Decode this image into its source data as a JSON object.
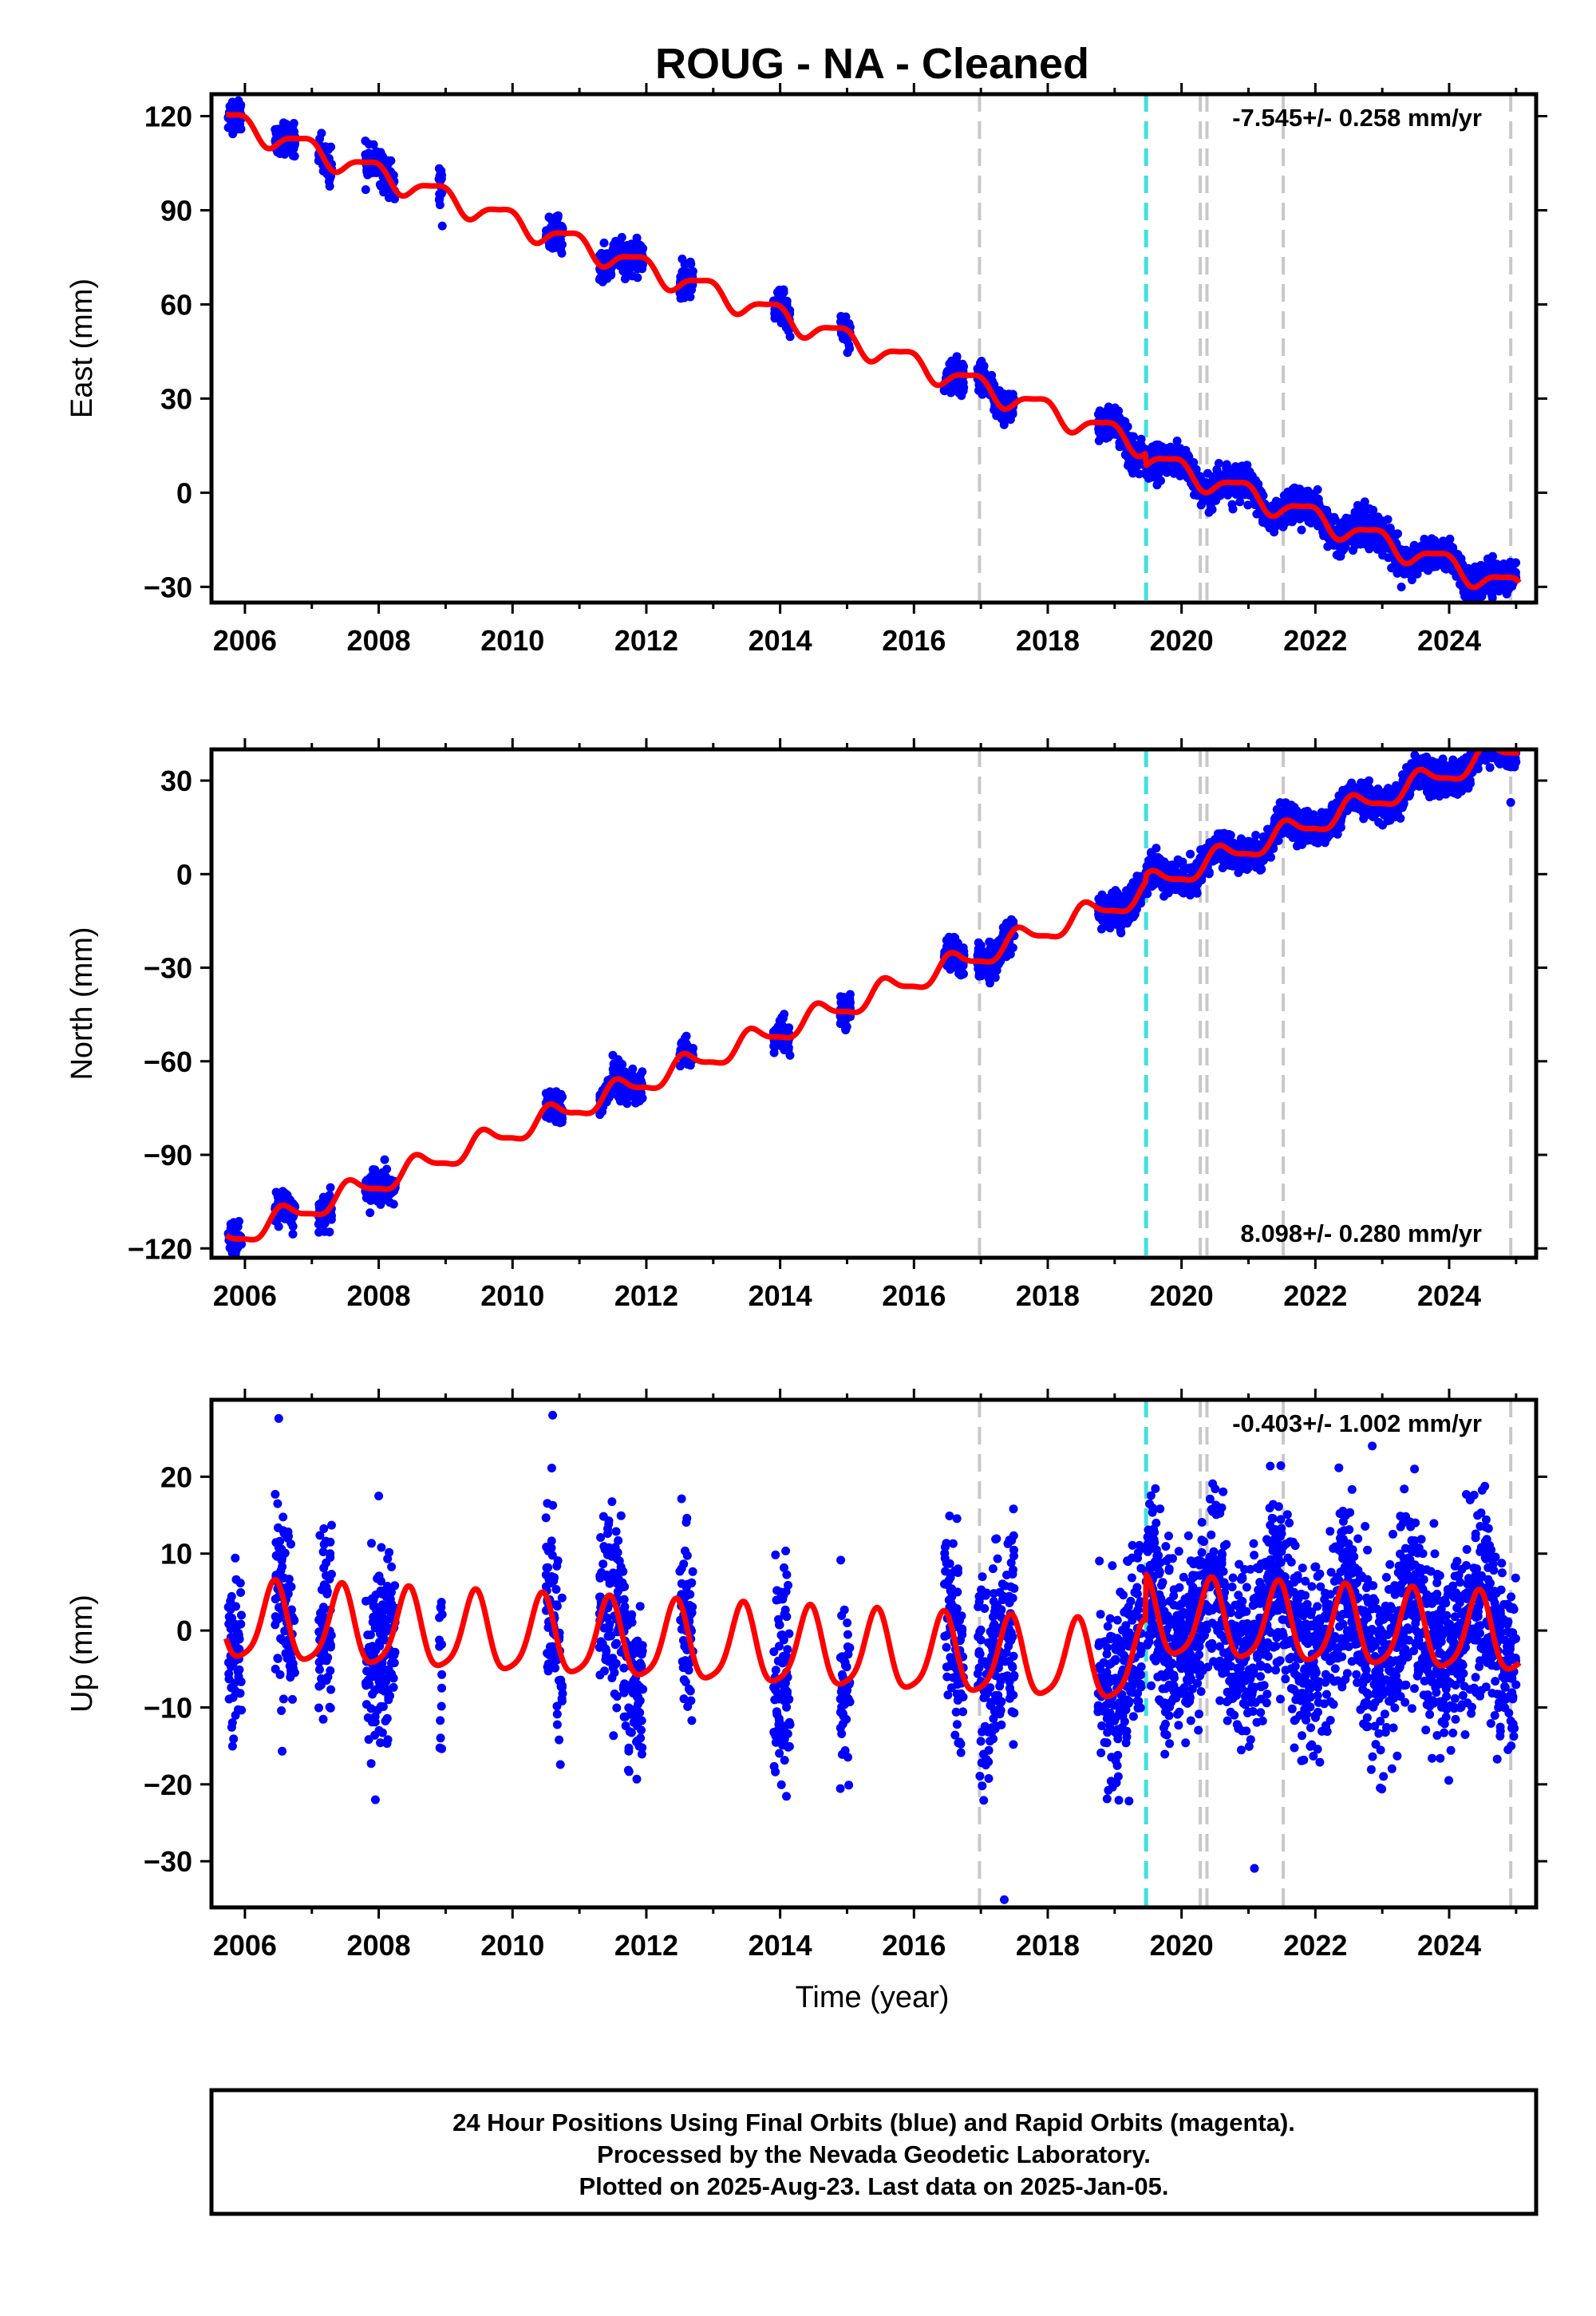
{
  "title": "ROUG  - NA - Cleaned",
  "xlabel": "Time (year)",
  "footer": {
    "line1": "24 Hour Positions Using Final Orbits (blue) and Rapid Orbits (magenta).",
    "line2": "Processed by the Nevada Geodetic Laboratory.",
    "line3": "Plotted on 2025-Aug-23. Last data on 2025-Jan-05."
  },
  "colors": {
    "data": "#0000ff",
    "model": "#ff0000",
    "equipment_change": "#c8c8c8",
    "antenna_change": "#40e0e0",
    "frame": "#000000"
  },
  "chart_data": [
    {
      "type": "scatter",
      "panel": "east",
      "ylabel": "East (mm)",
      "xlim": [
        2005.5,
        2025.3
      ],
      "ylim": [
        -35,
        127
      ],
      "xticks": [
        2006,
        2008,
        2010,
        2012,
        2014,
        2016,
        2018,
        2020,
        2022,
        2024
      ],
      "yticks": [
        -30,
        0,
        30,
        60,
        90,
        120
      ],
      "rate_label": "-7.545+/- 0.258 mm/yr",
      "rate_position": "top-right",
      "grid": false,
      "trend": {
        "slope": -7.545,
        "t0": 2015.5,
        "intercept": 45,
        "amp1": 3.5,
        "phase1": 2.4,
        "amp2": 1.0,
        "phase2": 0.8,
        "offsets": [
          {
            "t": 2019.47,
            "dy": -4
          }
        ]
      },
      "dashed_lines": [
        {
          "x": 2016.98,
          "kind": "equipment"
        },
        {
          "x": 2019.47,
          "kind": "antenna"
        },
        {
          "x": 2020.28,
          "kind": "equipment"
        },
        {
          "x": 2020.38,
          "kind": "equipment"
        },
        {
          "x": 2021.52,
          "kind": "equipment"
        },
        {
          "x": 2024.92,
          "kind": "equipment"
        }
      ],
      "data_segments": [
        [
          2005.75,
          2005.95
        ],
        [
          2006.45,
          2006.75
        ],
        [
          2007.1,
          2007.3
        ],
        [
          2007.8,
          2008.25
        ],
        [
          2008.9,
          2008.95
        ],
        [
          2010.5,
          2010.75
        ],
        [
          2011.3,
          2011.95
        ],
        [
          2012.5,
          2012.7
        ],
        [
          2013.9,
          2014.15
        ],
        [
          2014.9,
          2015.05
        ],
        [
          2016.45,
          2016.75
        ],
        [
          2016.95,
          2017.5
        ],
        [
          2018.75,
          2019.4
        ],
        [
          2019.45,
          2025.0
        ]
      ],
      "data_scatter": 2.5,
      "outliers": [
        {
          "x": 2008.95,
          "y": 85
        }
      ]
    },
    {
      "type": "scatter",
      "panel": "north",
      "ylabel": "North (mm)",
      "xlim": [
        2005.5,
        2025.3
      ],
      "ylim": [
        -123,
        40
      ],
      "xticks": [
        2006,
        2008,
        2010,
        2012,
        2014,
        2016,
        2018,
        2020,
        2022,
        2024
      ],
      "yticks": [
        -120,
        -90,
        -60,
        -30,
        0,
        30
      ],
      "rate_label": "8.098+/- 0.280 mm/yr",
      "rate_position": "bottom-right",
      "grid": false,
      "trend": {
        "slope": 8.098,
        "t0": 2015.5,
        "intercept": -38,
        "amp1": 3.5,
        "phase1": 4.2,
        "amp2": 1.0,
        "phase2": 1.5,
        "offsets": [
          {
            "t": 2019.47,
            "dy": 2
          }
        ]
      },
      "dashed_lines": [
        {
          "x": 2016.98,
          "kind": "equipment"
        },
        {
          "x": 2019.47,
          "kind": "antenna"
        },
        {
          "x": 2020.28,
          "kind": "equipment"
        },
        {
          "x": 2020.38,
          "kind": "equipment"
        },
        {
          "x": 2021.52,
          "kind": "equipment"
        },
        {
          "x": 2024.92,
          "kind": "equipment"
        }
      ],
      "data_segments": [
        [
          2005.75,
          2005.95
        ],
        [
          2006.45,
          2006.75
        ],
        [
          2007.1,
          2007.3
        ],
        [
          2007.8,
          2008.25
        ],
        [
          2010.5,
          2010.75
        ],
        [
          2011.3,
          2011.95
        ],
        [
          2012.5,
          2012.7
        ],
        [
          2013.9,
          2014.15
        ],
        [
          2014.9,
          2015.05
        ],
        [
          2016.45,
          2016.75
        ],
        [
          2016.95,
          2017.5
        ],
        [
          2018.75,
          2019.4
        ],
        [
          2019.45,
          2025.0
        ]
      ],
      "data_scatter": 2.5,
      "outliers": [
        {
          "x": 2024.92,
          "y": 23
        }
      ]
    },
    {
      "type": "scatter",
      "panel": "up",
      "ylabel": "Up (mm)",
      "xlim": [
        2005.5,
        2025.3
      ],
      "ylim": [
        -36,
        30
      ],
      "xticks": [
        2006,
        2008,
        2010,
        2012,
        2014,
        2016,
        2018,
        2020,
        2022,
        2024
      ],
      "yticks": [
        -30,
        -20,
        -10,
        0,
        10,
        20
      ],
      "rate_label": "-0.403+/- 1.002 mm/yr",
      "rate_position": "top-right",
      "grid": false,
      "trend": {
        "slope": -0.403,
        "t0": 2015.5,
        "intercept": -3,
        "amp1": 5.0,
        "phase1": 5.1,
        "amp2": 1.0,
        "phase2": 2.0,
        "offsets": [
          {
            "t": 2019.47,
            "dy": 6
          }
        ]
      },
      "dashed_lines": [
        {
          "x": 2016.98,
          "kind": "equipment"
        },
        {
          "x": 2019.47,
          "kind": "antenna"
        },
        {
          "x": 2020.28,
          "kind": "equipment"
        },
        {
          "x": 2020.38,
          "kind": "equipment"
        },
        {
          "x": 2021.52,
          "kind": "equipment"
        },
        {
          "x": 2024.92,
          "kind": "equipment"
        }
      ],
      "data_segments": [
        [
          2005.75,
          2005.95
        ],
        [
          2006.45,
          2006.75
        ],
        [
          2007.1,
          2007.3
        ],
        [
          2007.8,
          2008.25
        ],
        [
          2008.9,
          2008.95
        ],
        [
          2010.5,
          2010.75
        ],
        [
          2011.3,
          2011.95
        ],
        [
          2012.5,
          2012.7
        ],
        [
          2013.9,
          2014.15
        ],
        [
          2014.9,
          2015.05
        ],
        [
          2016.45,
          2016.75
        ],
        [
          2016.95,
          2017.5
        ],
        [
          2018.75,
          2019.4
        ],
        [
          2019.45,
          2025.0
        ]
      ],
      "data_scatter": 6.0,
      "outliers": [
        {
          "x": 2010.6,
          "y": 28
        },
        {
          "x": 2007.95,
          "y": -22
        },
        {
          "x": 2017.35,
          "y": -35
        },
        {
          "x": 2022.85,
          "y": 24
        },
        {
          "x": 2008.0,
          "y": 17.5
        }
      ]
    }
  ]
}
